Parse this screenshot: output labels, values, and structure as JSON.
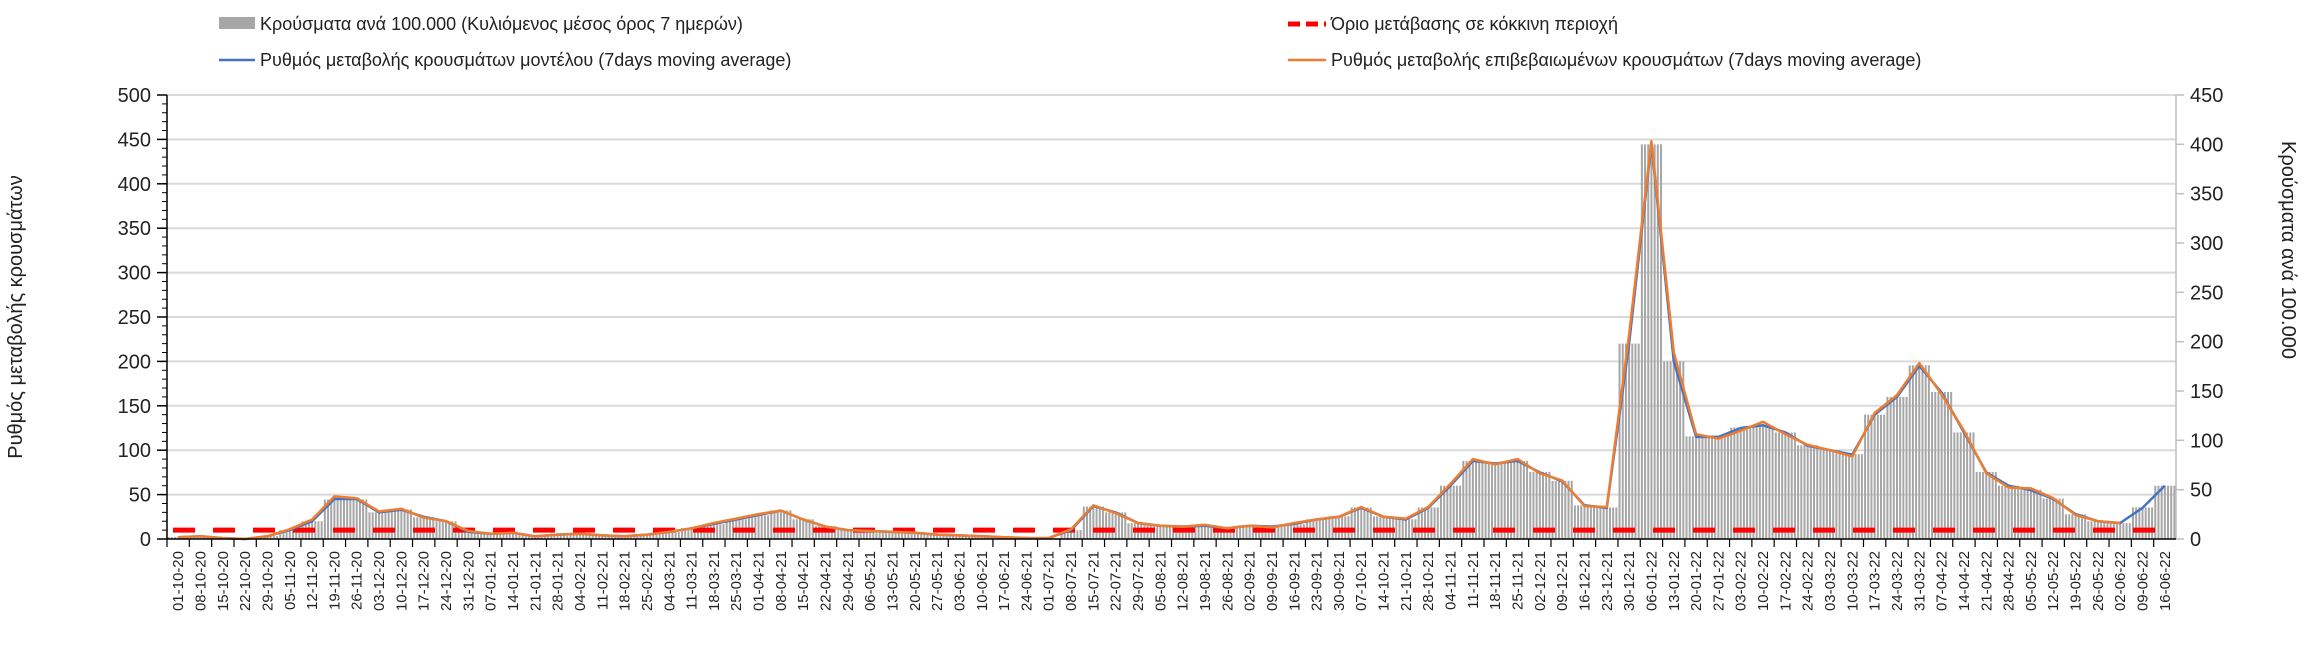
{
  "chart_data": {
    "type": "bar+line",
    "title": "",
    "legend": {
      "placement": "top",
      "bars_label": "Κρούσματα ανά 100.000 (Κυλιόμενος μέσος όρος 7 ημερών)",
      "threshold_label": "Όριο μετάβασης σε κόκκινη περιοχή",
      "model_label": "Ρυθμός μεταβολής κρουσμάτων μοντέλου (7days moving average)",
      "confirmed_label": "Ρυθμός μεταβολής επιβεβαιωμένων κρουσμάτων (7days moving average)"
    },
    "ylabel_left": "Ρυθμός μεταβολής κρουσμάτων",
    "ylabel_right": "Κρούσματα ανά 100.000",
    "ylim_left": [
      0,
      500
    ],
    "yticks_left": [
      0,
      50,
      100,
      150,
      200,
      250,
      300,
      350,
      400,
      450,
      500
    ],
    "ylim_right": [
      0,
      450
    ],
    "yticks_right": [
      0,
      50,
      100,
      150,
      200,
      250,
      300,
      350,
      400,
      450
    ],
    "grid": true,
    "threshold": 10,
    "categories": [
      "01-10-20",
      "08-10-20",
      "15-10-20",
      "22-10-20",
      "29-10-20",
      "05-11-20",
      "12-11-20",
      "19-11-20",
      "26-11-20",
      "03-12-20",
      "10-12-20",
      "17-12-20",
      "24-12-20",
      "31-12-20",
      "07-01-21",
      "14-01-21",
      "21-01-21",
      "28-01-21",
      "04-02-21",
      "11-02-21",
      "18-02-21",
      "25-02-21",
      "04-03-21",
      "11-03-21",
      "18-03-21",
      "25-03-21",
      "01-04-21",
      "08-04-21",
      "15-04-21",
      "22-04-21",
      "29-04-21",
      "06-05-21",
      "13-05-21",
      "20-05-21",
      "27-05-21",
      "03-06-21",
      "10-06-21",
      "17-06-21",
      "24-06-21",
      "01-07-21",
      "08-07-21",
      "15-07-21",
      "22-07-21",
      "29-07-21",
      "05-08-21",
      "12-08-21",
      "19-08-21",
      "26-08-21",
      "02-09-21",
      "09-09-21",
      "16-09-21",
      "23-09-21",
      "30-09-21",
      "07-10-21",
      "14-10-21",
      "21-10-21",
      "28-10-21",
      "04-11-21",
      "11-11-21",
      "18-11-21",
      "25-11-21",
      "02-12-21",
      "09-12-21",
      "16-12-21",
      "23-12-21",
      "30-12-21",
      "06-01-22",
      "13-01-22",
      "20-01-22",
      "27-01-22",
      "03-02-22",
      "10-02-22",
      "17-02-22",
      "24-02-22",
      "03-03-22",
      "10-03-22",
      "17-03-22",
      "24-03-22",
      "31-03-22",
      "07-04-22",
      "14-04-22",
      "21-04-22",
      "28-04-22",
      "05-05-22",
      "12-05-22",
      "19-05-22",
      "26-05-22",
      "02-06-22",
      "09-06-22",
      "16-06-22"
    ],
    "series": [
      {
        "name": "bars",
        "axis": "right",
        "color": "#a6a6a6",
        "values": [
          2,
          3,
          1,
          0,
          3,
          9,
          18,
          40,
          40,
          27,
          30,
          22,
          18,
          7,
          5,
          6,
          3,
          5,
          5,
          4,
          3,
          5,
          7,
          11,
          15,
          20,
          24,
          29,
          20,
          13,
          9,
          8,
          7,
          6,
          5,
          4,
          3,
          2,
          1,
          1,
          9,
          33,
          27,
          16,
          14,
          13,
          14,
          11,
          14,
          13,
          15,
          20,
          23,
          32,
          23,
          20,
          32,
          54,
          79,
          77,
          79,
          68,
          59,
          34,
          32,
          198,
          400,
          180,
          104,
          104,
          113,
          115,
          108,
          95,
          90,
          86,
          126,
          144,
          176,
          149,
          108,
          68,
          54,
          50,
          41,
          25,
          18,
          16,
          32,
          54
        ]
      },
      {
        "name": "model",
        "axis": "left",
        "color": "#4472c4",
        "values": [
          2,
          3,
          1,
          0,
          3,
          10,
          20,
          45,
          45,
          30,
          33,
          25,
          20,
          8,
          6,
          7,
          3,
          5,
          6,
          4,
          3,
          5,
          8,
          12,
          17,
          22,
          27,
          32,
          22,
          14,
          10,
          9,
          8,
          7,
          5,
          4,
          3,
          2,
          1,
          1,
          10,
          37,
          30,
          18,
          15,
          14,
          15,
          12,
          15,
          14,
          17,
          22,
          25,
          35,
          25,
          22,
          35,
          60,
          88,
          85,
          88,
          75,
          65,
          38,
          35,
          220,
          445,
          200,
          115,
          115,
          125,
          128,
          120,
          105,
          100,
          95,
          140,
          160,
          195,
          165,
          120,
          75,
          60,
          55,
          45,
          28,
          20,
          18,
          35,
          60
        ]
      },
      {
        "name": "confirmed",
        "axis": "left",
        "color": "#ed7d31",
        "values": [
          2,
          3,
          1,
          0,
          3,
          11,
          22,
          48,
          46,
          31,
          34,
          24,
          20,
          9,
          6,
          7,
          3,
          5,
          6,
          4,
          3,
          5,
          8,
          12,
          18,
          23,
          28,
          32,
          22,
          14,
          10,
          9,
          8,
          7,
          5,
          4,
          3,
          2,
          1,
          1,
          11,
          38,
          29,
          18,
          15,
          14,
          16,
          12,
          15,
          13,
          18,
          22,
          25,
          36,
          25,
          23,
          36,
          62,
          90,
          84,
          90,
          74,
          66,
          37,
          36,
          230,
          448,
          210,
          118,
          113,
          122,
          132,
          118,
          106,
          100,
          93,
          142,
          162,
          198,
          163,
          122,
          74,
          58,
          57,
          46,
          27,
          20,
          18,
          null,
          null
        ]
      }
    ]
  }
}
